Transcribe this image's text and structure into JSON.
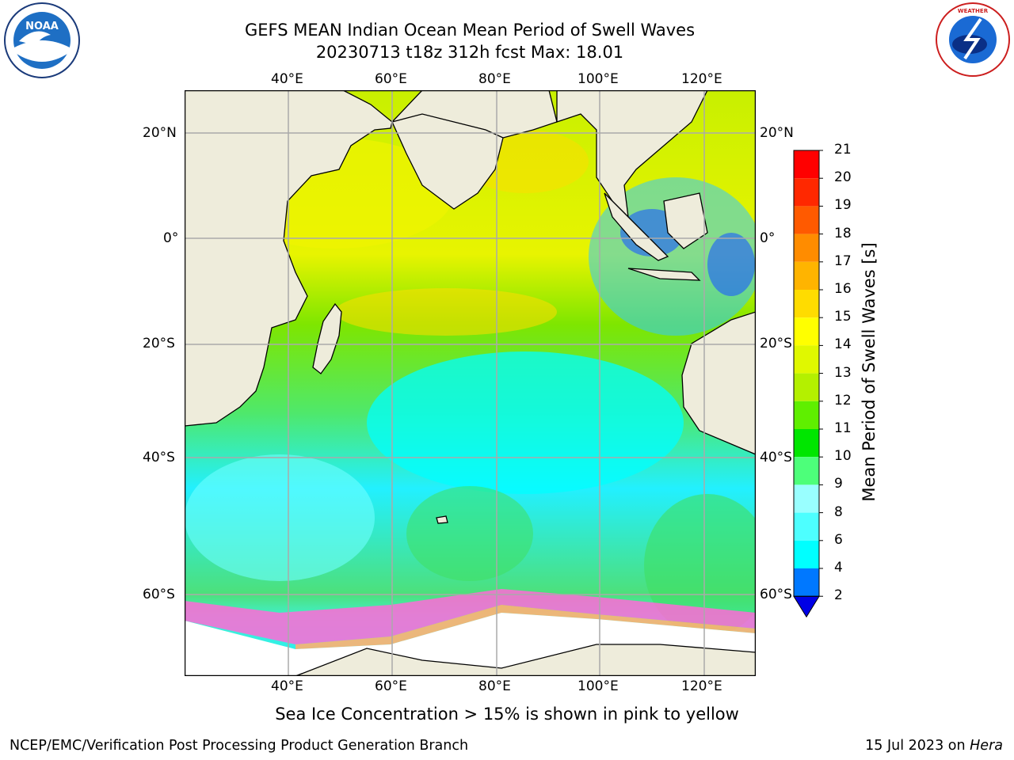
{
  "title": {
    "line1": "GEFS MEAN Indian Ocean Mean Period of Swell Waves",
    "line2": "20230713 t18z 312h fcst   Max: 18.01"
  },
  "map": {
    "region": "Indian Ocean",
    "lon_labels": [
      "40°E",
      "60°E",
      "80°E",
      "100°E",
      "120°E"
    ],
    "lat_labels": [
      "20°N",
      "0°",
      "20°S",
      "40°S",
      "60°S"
    ],
    "grid": true,
    "land_color": "#eeecdb",
    "coastline_color": "#000000"
  },
  "colorbar": {
    "label": "Mean Period of Swell Waves [s]",
    "ticks": [
      "2",
      "4",
      "6",
      "8",
      "9",
      "10",
      "11",
      "12",
      "13",
      "14",
      "15",
      "16",
      "17",
      "18",
      "19",
      "20",
      "21"
    ],
    "colors": [
      "#0000e6",
      "#0078ff",
      "#00ffff",
      "#4dffff",
      "#99ffff",
      "#4dff7a",
      "#00e600",
      "#5fef00",
      "#b4f000",
      "#e0f800",
      "#ffff00",
      "#ffdc00",
      "#ffb400",
      "#ff8c00",
      "#ff5a00",
      "#ff2800",
      "#ff0000"
    ],
    "extend": "min"
  },
  "note": "Sea Ice Concentration > 15% is shown in pink to yellow",
  "footer": {
    "left": "NCEP/EMC/Verification Post Processing Product Generation Branch",
    "date": "15 Jul 2023 on",
    "host": "Hera"
  },
  "logos": {
    "left": "noaa-logo",
    "right": "nws-logo",
    "left_text": "NOAA",
    "right_text": "NATIONAL WEATHER SERVICE"
  }
}
